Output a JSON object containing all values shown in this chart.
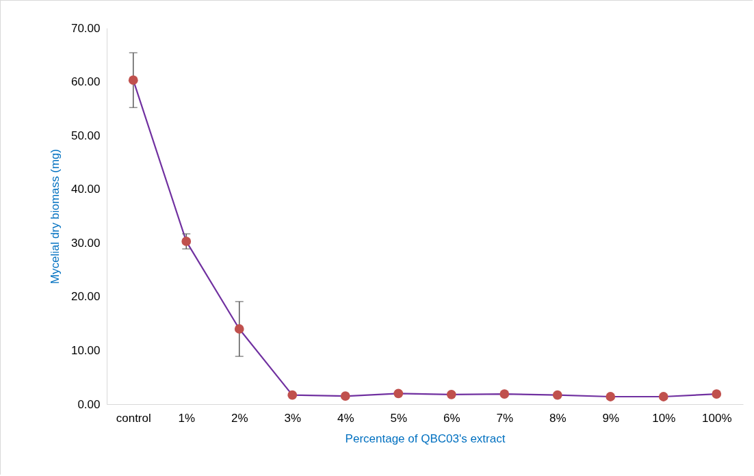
{
  "chart_data": {
    "type": "line",
    "xlabel": "Percentage of QBC03's extract",
    "ylabel": "Mycelial dry biomass (mg)",
    "categories": [
      "control",
      "1%",
      "2%",
      "3%",
      "4%",
      "5%",
      "6%",
      "7%",
      "8%",
      "9%",
      "10%",
      "100%"
    ],
    "series": [
      {
        "color": "#7030a0",
        "colors": [
          "#c0504d",
          "#c0504d",
          "#c0504d",
          "#c0504d",
          "#c0504d",
          "#c0504d",
          "#c0504d",
          "#c0504d",
          "#c0504d",
          "#c0504d",
          "#c0504d",
          "#c0504d"
        ],
        "values": [
          60.3,
          30.3,
          14.0,
          1.7,
          1.5,
          2.0,
          1.8,
          1.9,
          1.7,
          1.4,
          1.4,
          1.9
        ],
        "errors": [
          5.1,
          1.4,
          5.1,
          null,
          null,
          null,
          null,
          null,
          null,
          null,
          null,
          null
        ]
      }
    ],
    "ylim": [
      0,
      70
    ],
    "yticks": [
      {
        "value": 0,
        "label": "0.00"
      },
      {
        "value": 10,
        "label": "10.00"
      },
      {
        "value": 20,
        "label": "20.00"
      },
      {
        "value": 30,
        "label": "30.00"
      },
      {
        "value": 40,
        "label": "40.00"
      },
      {
        "value": 50,
        "label": "50.00"
      },
      {
        "value": 60,
        "label": "60.00"
      },
      {
        "value": 70,
        "label": "70.00"
      }
    ],
    "grid": false,
    "marker": "circle",
    "line_style": "solid"
  }
}
